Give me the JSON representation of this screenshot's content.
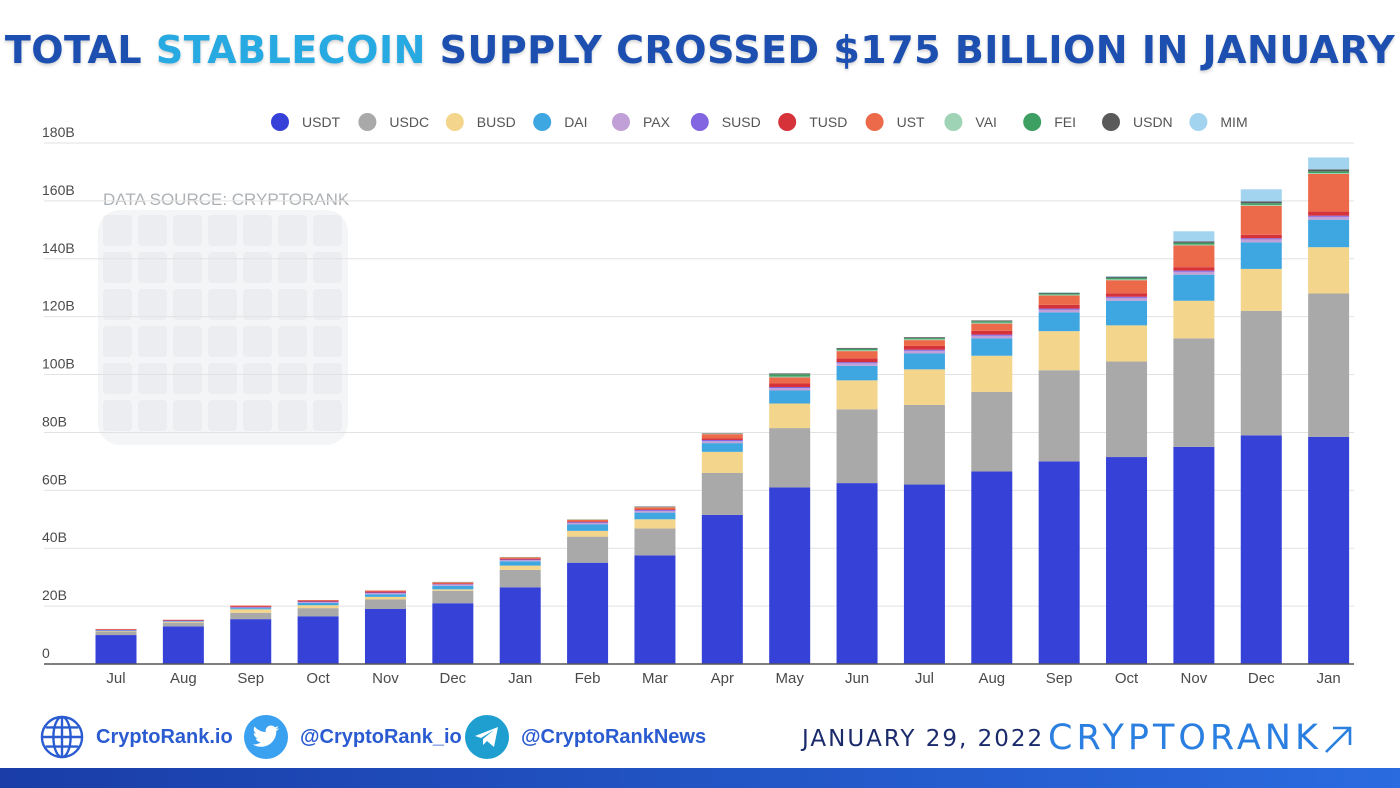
{
  "header": {
    "title_part1": "TOTAL ",
    "title_highlight": "STABLECOIN",
    "title_part2": " SUPPLY CROSSED $175 BILLION IN JANUARY"
  },
  "watermark_text": "DATA SOURCE: CRYPTORANK",
  "chart_data": {
    "type": "bar",
    "stacked": true,
    "title": "TOTAL STABLECOIN SUPPLY CROSSED $175 BILLION IN JANUARY",
    "xlabel": "",
    "ylabel": "",
    "ylim": [
      0,
      180
    ],
    "y_ticks": [
      0,
      20,
      40,
      60,
      80,
      100,
      120,
      140,
      160,
      180
    ],
    "y_tick_labels": [
      "0",
      "20B",
      "40B",
      "60B",
      "80B",
      "100B",
      "120B",
      "140B",
      "160B",
      "180B"
    ],
    "grid": true,
    "legend_position": "top-center",
    "categories": [
      "Jul",
      "Aug",
      "Sep",
      "Oct",
      "Nov",
      "Dec",
      "Jan",
      "Feb",
      "Mar",
      "Apr",
      "May",
      "Jun",
      "Jul",
      "Aug",
      "Sep",
      "Oct",
      "Nov",
      "Dec",
      "Jan"
    ],
    "series": [
      {
        "name": "USDT",
        "color": "#3641d8",
        "values": [
          10,
          13,
          15.5,
          16.5,
          19,
          21,
          26.5,
          35,
          37.5,
          51.5,
          61,
          62.5,
          62,
          66.5,
          70,
          71.5,
          75,
          79,
          78.5
        ]
      },
      {
        "name": "USDC",
        "color": "#a9a9a9",
        "values": [
          1.2,
          1.3,
          2.2,
          2.8,
          3.3,
          4.3,
          6,
          9,
          9.3,
          14.5,
          20.5,
          25.5,
          27.5,
          27.5,
          31.5,
          33,
          37.5,
          43,
          49.5
        ]
      },
      {
        "name": "BUSD",
        "color": "#f3d58b",
        "values": [
          0.2,
          0.25,
          1.2,
          1,
          0.9,
          0.5,
          1.5,
          2,
          3.2,
          7.3,
          8.5,
          10,
          12.3,
          12.5,
          13.5,
          12.5,
          13,
          14.5,
          16
        ]
      },
      {
        "name": "DAI",
        "color": "#3ea6e0",
        "values": [
          0.15,
          0.2,
          0.4,
          0.8,
          0.9,
          1.2,
          1.5,
          2.2,
          2.3,
          3,
          4.5,
          5,
          5.5,
          6,
          6.5,
          8.5,
          9,
          9.2,
          9.5
        ]
      },
      {
        "name": "PAX",
        "color": "#c0a0d6",
        "values": [
          0.2,
          0.2,
          0.3,
          0.3,
          0.4,
          0.4,
          0.4,
          0.5,
          0.6,
          0.7,
          0.8,
          0.9,
          0.9,
          0.9,
          0.9,
          1,
          1,
          1,
          1
        ]
      },
      {
        "name": "SUSD",
        "color": "#8265e0",
        "values": [
          0.05,
          0.05,
          0.1,
          0.2,
          0.2,
          0.2,
          0.2,
          0.3,
          0.3,
          0.4,
          0.4,
          0.4,
          0.4,
          0.4,
          0.4,
          0.4,
          0.4,
          0.4,
          0.4
        ]
      },
      {
        "name": "TUSD",
        "color": "#d6323a",
        "values": [
          0.2,
          0.2,
          0.3,
          0.3,
          0.4,
          0.3,
          0.3,
          0.3,
          0.3,
          0.5,
          1.2,
          1.3,
          1.3,
          1.3,
          1.3,
          1.2,
          1.2,
          1.2,
          1.4
        ]
      },
      {
        "name": "UST",
        "color": "#ec6a49",
        "values": [
          0.1,
          0.1,
          0.2,
          0.2,
          0.3,
          0.4,
          0.5,
          0.6,
          0.7,
          1.5,
          2.1,
          2.5,
          2,
          2.5,
          3.2,
          4.5,
          7.5,
          10,
          13
        ]
      },
      {
        "name": "VAI",
        "color": "#9fd3b5",
        "values": [
          0,
          0,
          0,
          0,
          0,
          0.1,
          0.1,
          0.1,
          0.1,
          0.2,
          0.3,
          0.3,
          0.3,
          0.3,
          0.3,
          0.3,
          0.3,
          0.3,
          0.3
        ]
      },
      {
        "name": "FEI",
        "color": "#3e9f63",
        "values": [
          0,
          0,
          0,
          0,
          0,
          0,
          0,
          0,
          0,
          0,
          0.8,
          0.5,
          0.4,
          0.5,
          0.4,
          0.5,
          0.6,
          0.6,
          0.6
        ]
      },
      {
        "name": "USDN",
        "color": "#5a5a5a",
        "values": [
          0,
          0,
          0,
          0,
          0,
          0,
          0,
          0,
          0.1,
          0.1,
          0.3,
          0.3,
          0.3,
          0.3,
          0.3,
          0.4,
          0.5,
          0.6,
          0.7
        ]
      },
      {
        "name": "MIM",
        "color": "#a2d3ef",
        "values": [
          0,
          0,
          0,
          0,
          0,
          0,
          0,
          0,
          0,
          0,
          0,
          0,
          0,
          0,
          0.1,
          0.2,
          3.5,
          4.2,
          4.1
        ]
      }
    ]
  },
  "footer": {
    "website_label": "CryptoRank.io",
    "twitter_label": "@CryptoRank_io",
    "telegram_label": "@CryptoRankNews",
    "date": "JANUARY 29, 2022",
    "brand": "CRYPTORANK",
    "brand_color": "#2a7fe0"
  }
}
